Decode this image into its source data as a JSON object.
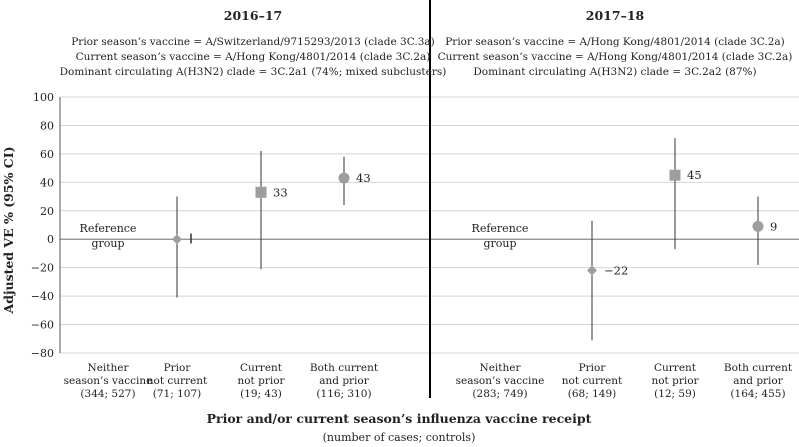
{
  "chart_data": {
    "type": "scatter",
    "ylabel": "Adjusted VE % (95% CI)",
    "xlabel": "Prior and/or current season’s influenza vaccine receipt",
    "xlabel_sub": "(number of cases; controls)",
    "ylim": [
      -80,
      100
    ],
    "yticks": [
      -80,
      -60,
      -40,
      -20,
      0,
      20,
      40,
      60,
      80,
      100
    ],
    "grid": true,
    "reference_label_lines": [
      "Reference",
      "group"
    ],
    "panels": [
      {
        "title": "2016–17",
        "info": [
          "Prior season’s vaccine = A/Switzerland/9715293/2013 (clade 3C.3a)",
          "Current season’s vaccine = A/Hong Kong/4801/2014 (clade 3C.2a)",
          "Dominant circulating A(H3N2) clade = 3C.2a1 (74%; mixed subclusters)"
        ],
        "categories": [
          {
            "lines": [
              "Neither",
              "season’s vaccine",
              "(344; 527)"
            ],
            "reference": true
          },
          {
            "lines": [
              "Prior",
              "not current",
              "(71; 107)"
            ],
            "ve": 0,
            "lo": -41,
            "hi": 30,
            "marker": "diamond",
            "label": "",
            "tick": true
          },
          {
            "lines": [
              "Current",
              "not prior",
              "(19; 43)"
            ],
            "ve": 33,
            "lo": -21,
            "hi": 62,
            "marker": "square",
            "label": "33"
          },
          {
            "lines": [
              "Both current",
              "and prior",
              "(116; 310)"
            ],
            "ve": 43,
            "lo": 24,
            "hi": 58,
            "marker": "circle",
            "label": "43"
          }
        ]
      },
      {
        "title": "2017–18",
        "info": [
          "Prior season’s vaccine = A/Hong Kong/4801/2014 (clade 3C.2a)",
          "Current season’s vaccine = A/Hong Kong/4801/2014 (clade 3C.2a)",
          "Dominant circulating A(H3N2) clade = 3C.2a2 (87%)"
        ],
        "categories": [
          {
            "lines": [
              "Neither",
              "season’s vaccine",
              "(283; 749)"
            ],
            "reference": true
          },
          {
            "lines": [
              "Prior",
              "not current",
              "(68; 149)"
            ],
            "ve": -22,
            "lo": -71,
            "hi": 13,
            "marker": "diamond",
            "label": "−22"
          },
          {
            "lines": [
              "Current",
              "not prior",
              "(12; 59)"
            ],
            "ve": 45,
            "lo": -7,
            "hi": 71,
            "marker": "square",
            "label": "45"
          },
          {
            "lines": [
              "Both current",
              "and prior",
              "(164; 455)"
            ],
            "ve": 9,
            "lo": -18,
            "hi": 30,
            "marker": "circle",
            "label": "9"
          }
        ]
      }
    ],
    "colors": {
      "marker": "#9e9e9e",
      "line": "#333333",
      "grid": "#d4d4d4",
      "zero": "#8a8a8a"
    }
  }
}
